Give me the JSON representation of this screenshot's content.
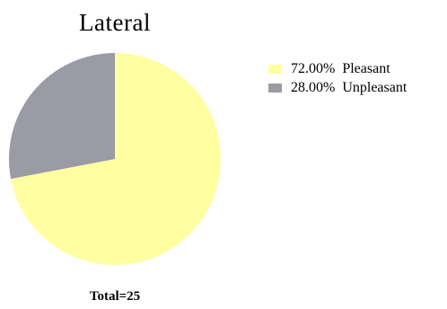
{
  "chart_data": {
    "type": "pie",
    "title": "Lateral",
    "slices": [
      {
        "label": "Pleasant",
        "value": 72.0,
        "percent_label": "72.00%",
        "color": "#ffffa1"
      },
      {
        "label": "Unpleasant",
        "value": 28.0,
        "percent_label": "28.00%",
        "color": "#9b9ba5"
      }
    ],
    "legend": "right",
    "annotation": "Total=25"
  }
}
